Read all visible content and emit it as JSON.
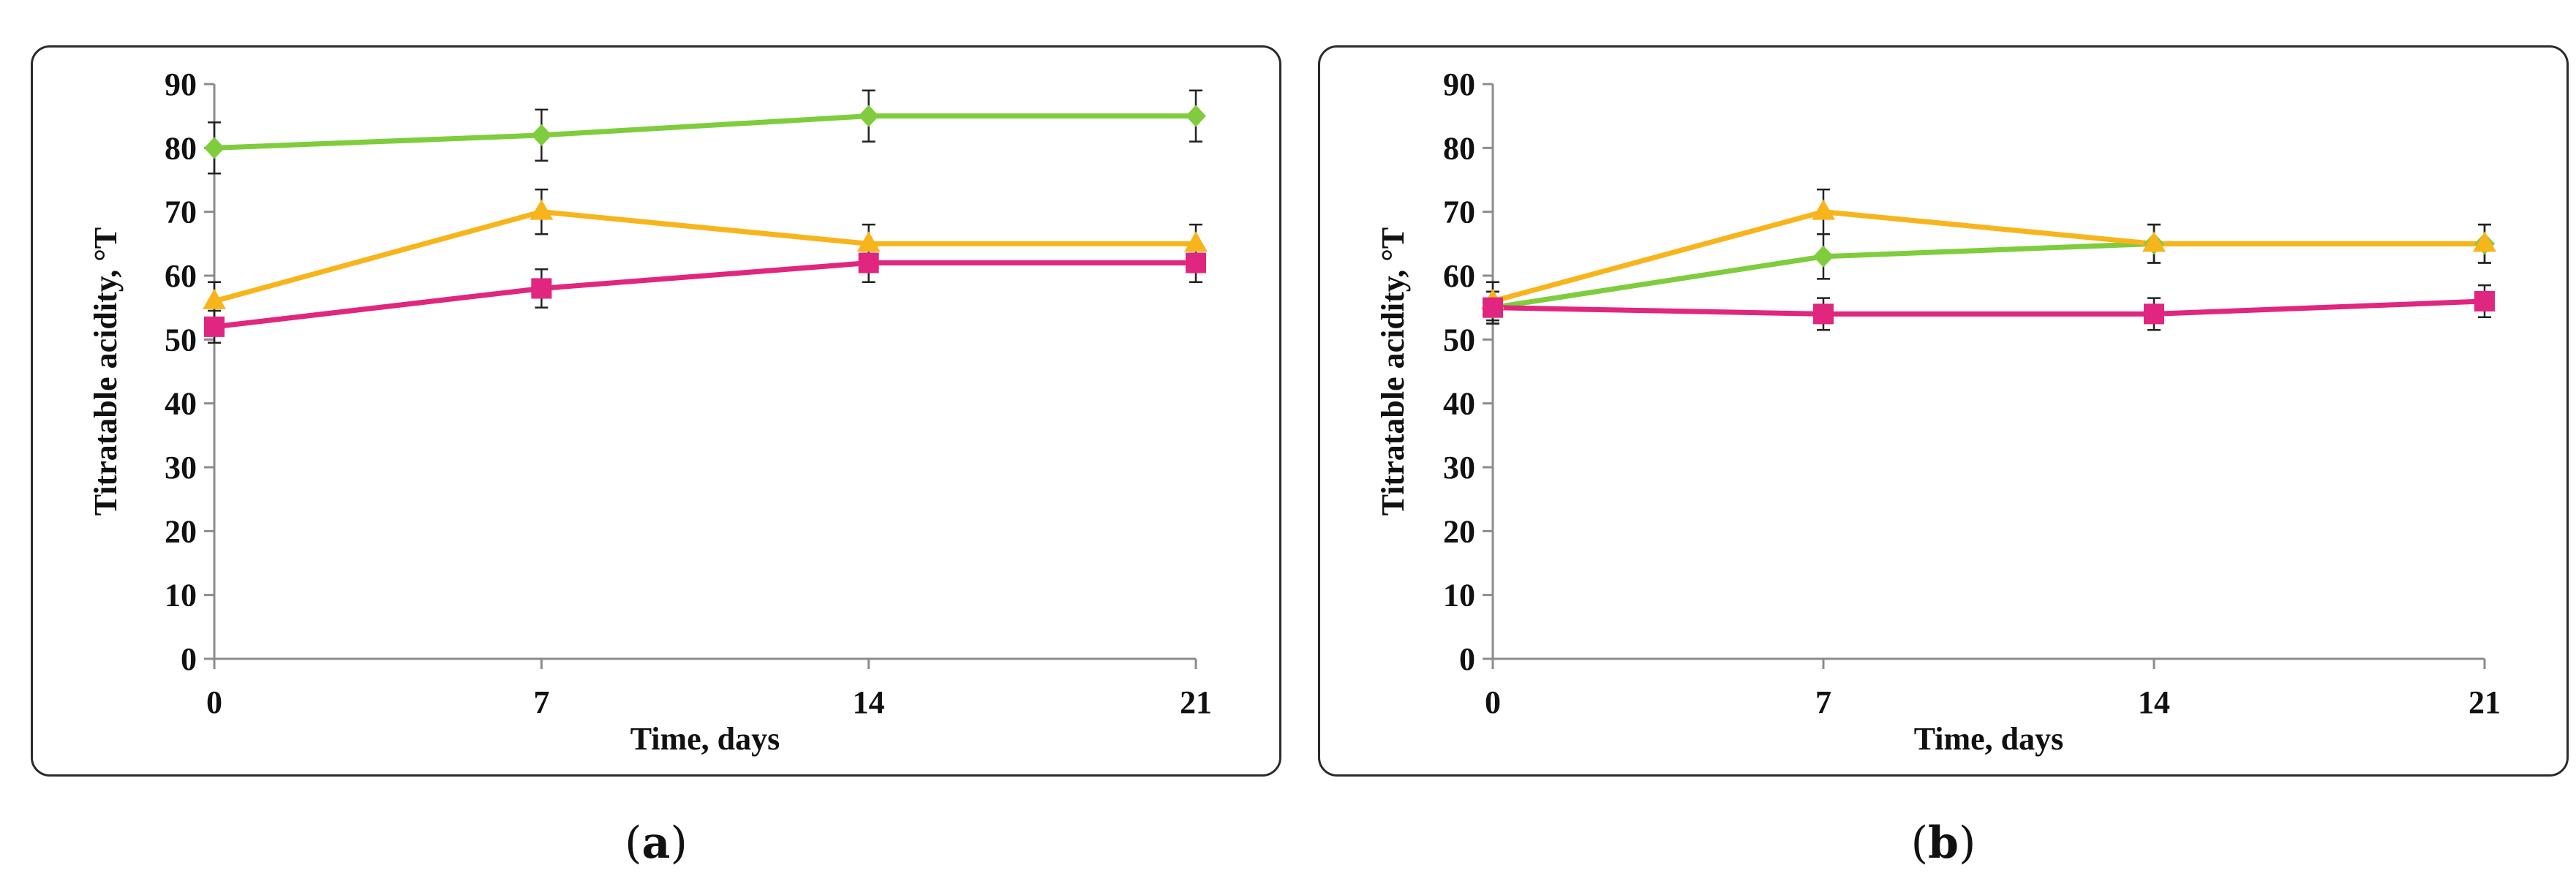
{
  "colors": {
    "green": "#7fcc3c",
    "orange": "#f8b41b",
    "magenta": "#e0267e",
    "axis": "#8c8c8c",
    "error_bar": "#222222"
  },
  "chart_data": [
    {
      "id": "a",
      "type": "line",
      "caption_open": "(",
      "caption_letter": "a",
      "caption_close": ")",
      "xlabel": "Time, days",
      "ylabel": "Titratable acidity, °T",
      "x": [
        0,
        7,
        14,
        21
      ],
      "x_tick_labels": [
        "0",
        "7",
        "14",
        "21"
      ],
      "ylim": [
        0,
        90
      ],
      "y_tick_labels": [
        "0",
        "10",
        "20",
        "30",
        "40",
        "50",
        "60",
        "70",
        "80",
        "90"
      ],
      "series": [
        {
          "color_key": "green",
          "marker": "diamond",
          "values": [
            80,
            82,
            85,
            85
          ],
          "errors": [
            4,
            4,
            4,
            4
          ]
        },
        {
          "color_key": "orange",
          "marker": "triangle",
          "values": [
            56,
            70,
            65,
            65
          ],
          "errors": [
            3,
            3.5,
            3,
            3
          ]
        },
        {
          "color_key": "magenta",
          "marker": "square",
          "values": [
            52,
            58,
            62,
            62
          ],
          "errors": [
            2.5,
            3,
            3,
            3
          ]
        }
      ]
    },
    {
      "id": "b",
      "type": "line",
      "caption_open": "(",
      "caption_letter": "b",
      "caption_close": ")",
      "xlabel": "Time, days",
      "ylabel": "Titratable acidity, °T",
      "x": [
        0,
        7,
        14,
        21
      ],
      "x_tick_labels": [
        "0",
        "7",
        "14",
        "21"
      ],
      "ylim": [
        0,
        90
      ],
      "y_tick_labels": [
        "0",
        "10",
        "20",
        "30",
        "40",
        "50",
        "60",
        "70",
        "80",
        "90"
      ],
      "series": [
        {
          "color_key": "green",
          "marker": "diamond",
          "values": [
            55,
            63,
            65,
            65
          ],
          "errors": [
            2.5,
            3.5,
            3,
            3
          ]
        },
        {
          "color_key": "orange",
          "marker": "triangle",
          "values": [
            56,
            70,
            65,
            65
          ],
          "errors": [
            3,
            3.5,
            3,
            3
          ]
        },
        {
          "color_key": "magenta",
          "marker": "square",
          "values": [
            55,
            54,
            54,
            56
          ],
          "errors": [
            2.5,
            2.5,
            2.5,
            2.5
          ]
        }
      ]
    }
  ]
}
